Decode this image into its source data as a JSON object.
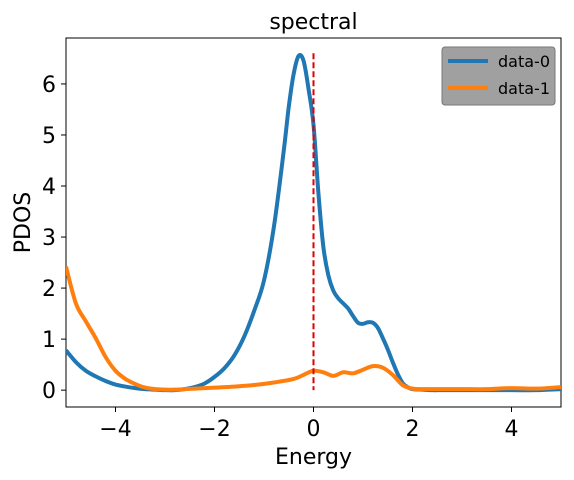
{
  "chart_data": {
    "type": "line",
    "title": "spectral",
    "xlabel": "Energy",
    "ylabel": "PDOS",
    "xlim": [
      -5,
      5
    ],
    "ylim": [
      -0.33,
      6.9
    ],
    "xticks": [
      -4,
      -2,
      0,
      2,
      4
    ],
    "xtick_labels": [
      "−4",
      "−2",
      "0",
      "2",
      "4"
    ],
    "yticks": [
      0,
      1,
      2,
      3,
      4,
      5,
      6
    ],
    "ytick_labels": [
      "0",
      "1",
      "2",
      "3",
      "4",
      "5",
      "6"
    ],
    "grid": false,
    "legend_position": "top-right",
    "series": [
      {
        "name": "data-0",
        "color": "#1f77b4",
        "x": [
          -5.0,
          -4.8,
          -4.6,
          -4.4,
          -4.2,
          -4.0,
          -3.8,
          -3.6,
          -3.4,
          -3.2,
          -3.0,
          -2.8,
          -2.6,
          -2.4,
          -2.2,
          -2.0,
          -1.8,
          -1.6,
          -1.4,
          -1.2,
          -1.0,
          -0.8,
          -0.6,
          -0.5,
          -0.4,
          -0.3,
          -0.2,
          -0.1,
          0.0,
          0.1,
          0.2,
          0.3,
          0.4,
          0.5,
          0.6,
          0.7,
          0.8,
          0.9,
          1.0,
          1.1,
          1.2,
          1.3,
          1.4,
          1.5,
          1.6,
          1.7,
          1.8,
          1.9,
          2.0,
          2.2,
          2.4,
          2.6,
          3.0,
          3.5,
          4.0,
          4.5,
          5.0
        ],
        "y": [
          0.78,
          0.55,
          0.38,
          0.27,
          0.18,
          0.11,
          0.07,
          0.04,
          0.02,
          0.01,
          0.0,
          0.0,
          0.02,
          0.06,
          0.13,
          0.26,
          0.43,
          0.68,
          1.05,
          1.55,
          2.15,
          3.2,
          4.7,
          5.55,
          6.2,
          6.55,
          6.45,
          5.9,
          5.2,
          3.85,
          2.8,
          2.25,
          1.95,
          1.8,
          1.7,
          1.6,
          1.45,
          1.32,
          1.3,
          1.33,
          1.32,
          1.22,
          1.02,
          0.8,
          0.55,
          0.32,
          0.14,
          0.06,
          0.02,
          0.01,
          0.0,
          0.0,
          0.0,
          0.0,
          0.0,
          0.0,
          0.02
        ]
      },
      {
        "name": "data-1",
        "color": "#ff7f0e",
        "x": [
          -5.0,
          -4.8,
          -4.6,
          -4.4,
          -4.2,
          -4.0,
          -3.8,
          -3.6,
          -3.4,
          -3.2,
          -3.0,
          -2.8,
          -2.6,
          -2.4,
          -2.2,
          -2.0,
          -1.6,
          -1.2,
          -0.8,
          -0.4,
          -0.2,
          0.0,
          0.2,
          0.4,
          0.6,
          0.8,
          1.0,
          1.2,
          1.4,
          1.6,
          1.8,
          2.0,
          2.2,
          2.6,
          3.0,
          3.5,
          4.0,
          4.5,
          5.0
        ],
        "y": [
          2.42,
          1.7,
          1.35,
          1.02,
          0.65,
          0.38,
          0.22,
          0.12,
          0.05,
          0.02,
          0.01,
          0.01,
          0.02,
          0.03,
          0.04,
          0.05,
          0.07,
          0.1,
          0.15,
          0.22,
          0.3,
          0.38,
          0.35,
          0.28,
          0.35,
          0.33,
          0.4,
          0.47,
          0.44,
          0.3,
          0.1,
          0.03,
          0.02,
          0.02,
          0.02,
          0.02,
          0.04,
          0.03,
          0.06
        ]
      }
    ],
    "reference_line": {
      "x": 0,
      "color": "#e00000",
      "style": "dashed"
    }
  }
}
